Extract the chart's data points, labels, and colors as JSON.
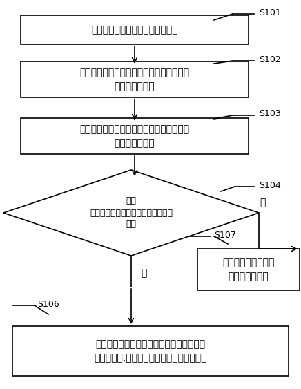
{
  "bg_color": "#ffffff",
  "box_edge_color": "#000000",
  "box_face_color": "#ffffff",
  "arrow_color": "#000000",
  "text_color": "#000000",
  "font_size": 10,
  "small_font_size": 9,
  "s101_text": "接收控制设备发送的媒体播放请求",
  "s102_text": "根据媒体播放请求包括的待播放频道标识，\n启动第一播放器",
  "s103_text": "根据媒体播放请求包括的待播放频道标识，\n下载待播放数据",
  "s104_text": "判断\n是否存在第二播放器播放当前播放频\n道？",
  "s107_text": "通过上述第一播放器\n播放待播放频道",
  "s106_text": "将第二播放器使用的屏幕显示控件绑定到第\n一播放器上,通过第一播放器播放待播放频道",
  "yes_text": "是",
  "no_text": "否"
}
